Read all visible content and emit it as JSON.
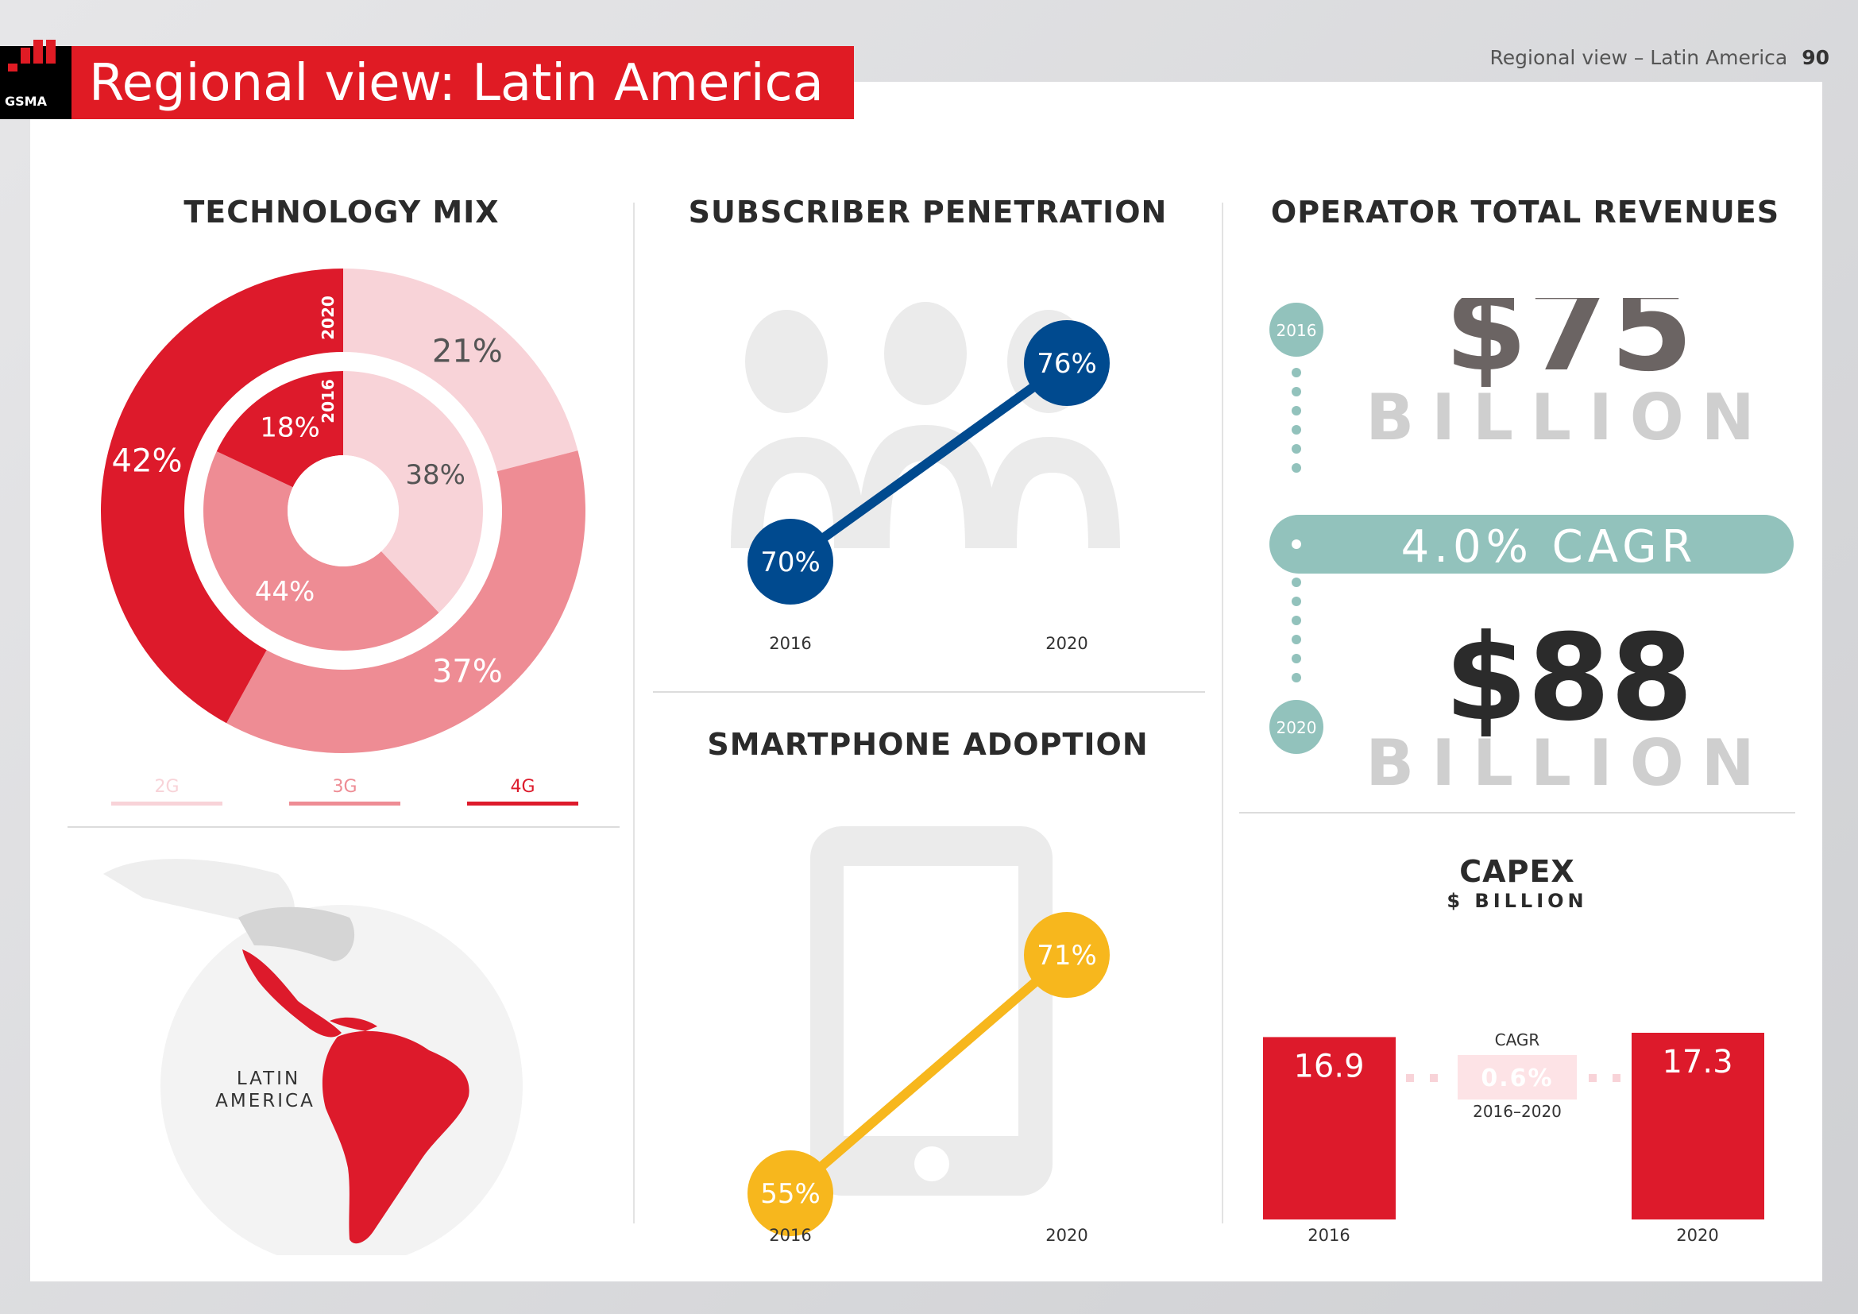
{
  "header": {
    "logo_text": "GSMA",
    "title": "Regional view: Latin America",
    "running_head": "Regional view – Latin America",
    "page_number": "90"
  },
  "technology_mix": {
    "title": "TECHNOLOGY MIX",
    "outer_year": "2020",
    "inner_year": "2016",
    "outer": {
      "2G": 21,
      "3G": 37,
      "4G": 42
    },
    "inner": {
      "2G": 38,
      "3G": 44,
      "4G": 18
    },
    "outer_labels": {
      "2G": "21%",
      "3G": "37%",
      "4G": "42%"
    },
    "inner_labels": {
      "2G": "38%",
      "3G": "44%",
      "4G": "18%"
    },
    "legend": [
      "2G",
      "3G",
      "4G"
    ],
    "colors": {
      "2G": "#f8d3d8",
      "3G": "#ee8c94",
      "4G": "#dd1a2b"
    },
    "map_label_line1": "LATIN",
    "map_label_line2": "AMERICA"
  },
  "subscriber_penetration": {
    "title": "SUBSCRIBER PENETRATION",
    "color": "#004a8f",
    "points": [
      {
        "year": "2016",
        "value": 70,
        "label": "70%"
      },
      {
        "year": "2020",
        "value": 76,
        "label": "76%"
      }
    ]
  },
  "smartphone_adoption": {
    "title": "SMARTPHONE ADOPTION",
    "color": "#f7b71d",
    "points": [
      {
        "year": "2016",
        "value": 55,
        "label": "55%"
      },
      {
        "year": "2020",
        "value": 71,
        "label": "71%"
      }
    ]
  },
  "operator_revenues": {
    "title": "OPERATOR TOTAL REVENUES",
    "year_start": "2016",
    "year_end": "2020",
    "value_start": "$75",
    "value_end": "$88",
    "unit": "BILLION",
    "cagr": "4.0% CAGR",
    "accent": "#92c2bc"
  },
  "capex": {
    "title": "CAPEX",
    "subtitle": "$ BILLION",
    "bars": [
      {
        "year": "2016",
        "value": 16.9,
        "label": "16.9"
      },
      {
        "year": "2020",
        "value": 17.3,
        "label": "17.3"
      }
    ],
    "cagr_label": "CAGR",
    "cagr_value": "0.6%",
    "cagr_period": "2016–2020",
    "color": "#dd1a2b"
  }
}
